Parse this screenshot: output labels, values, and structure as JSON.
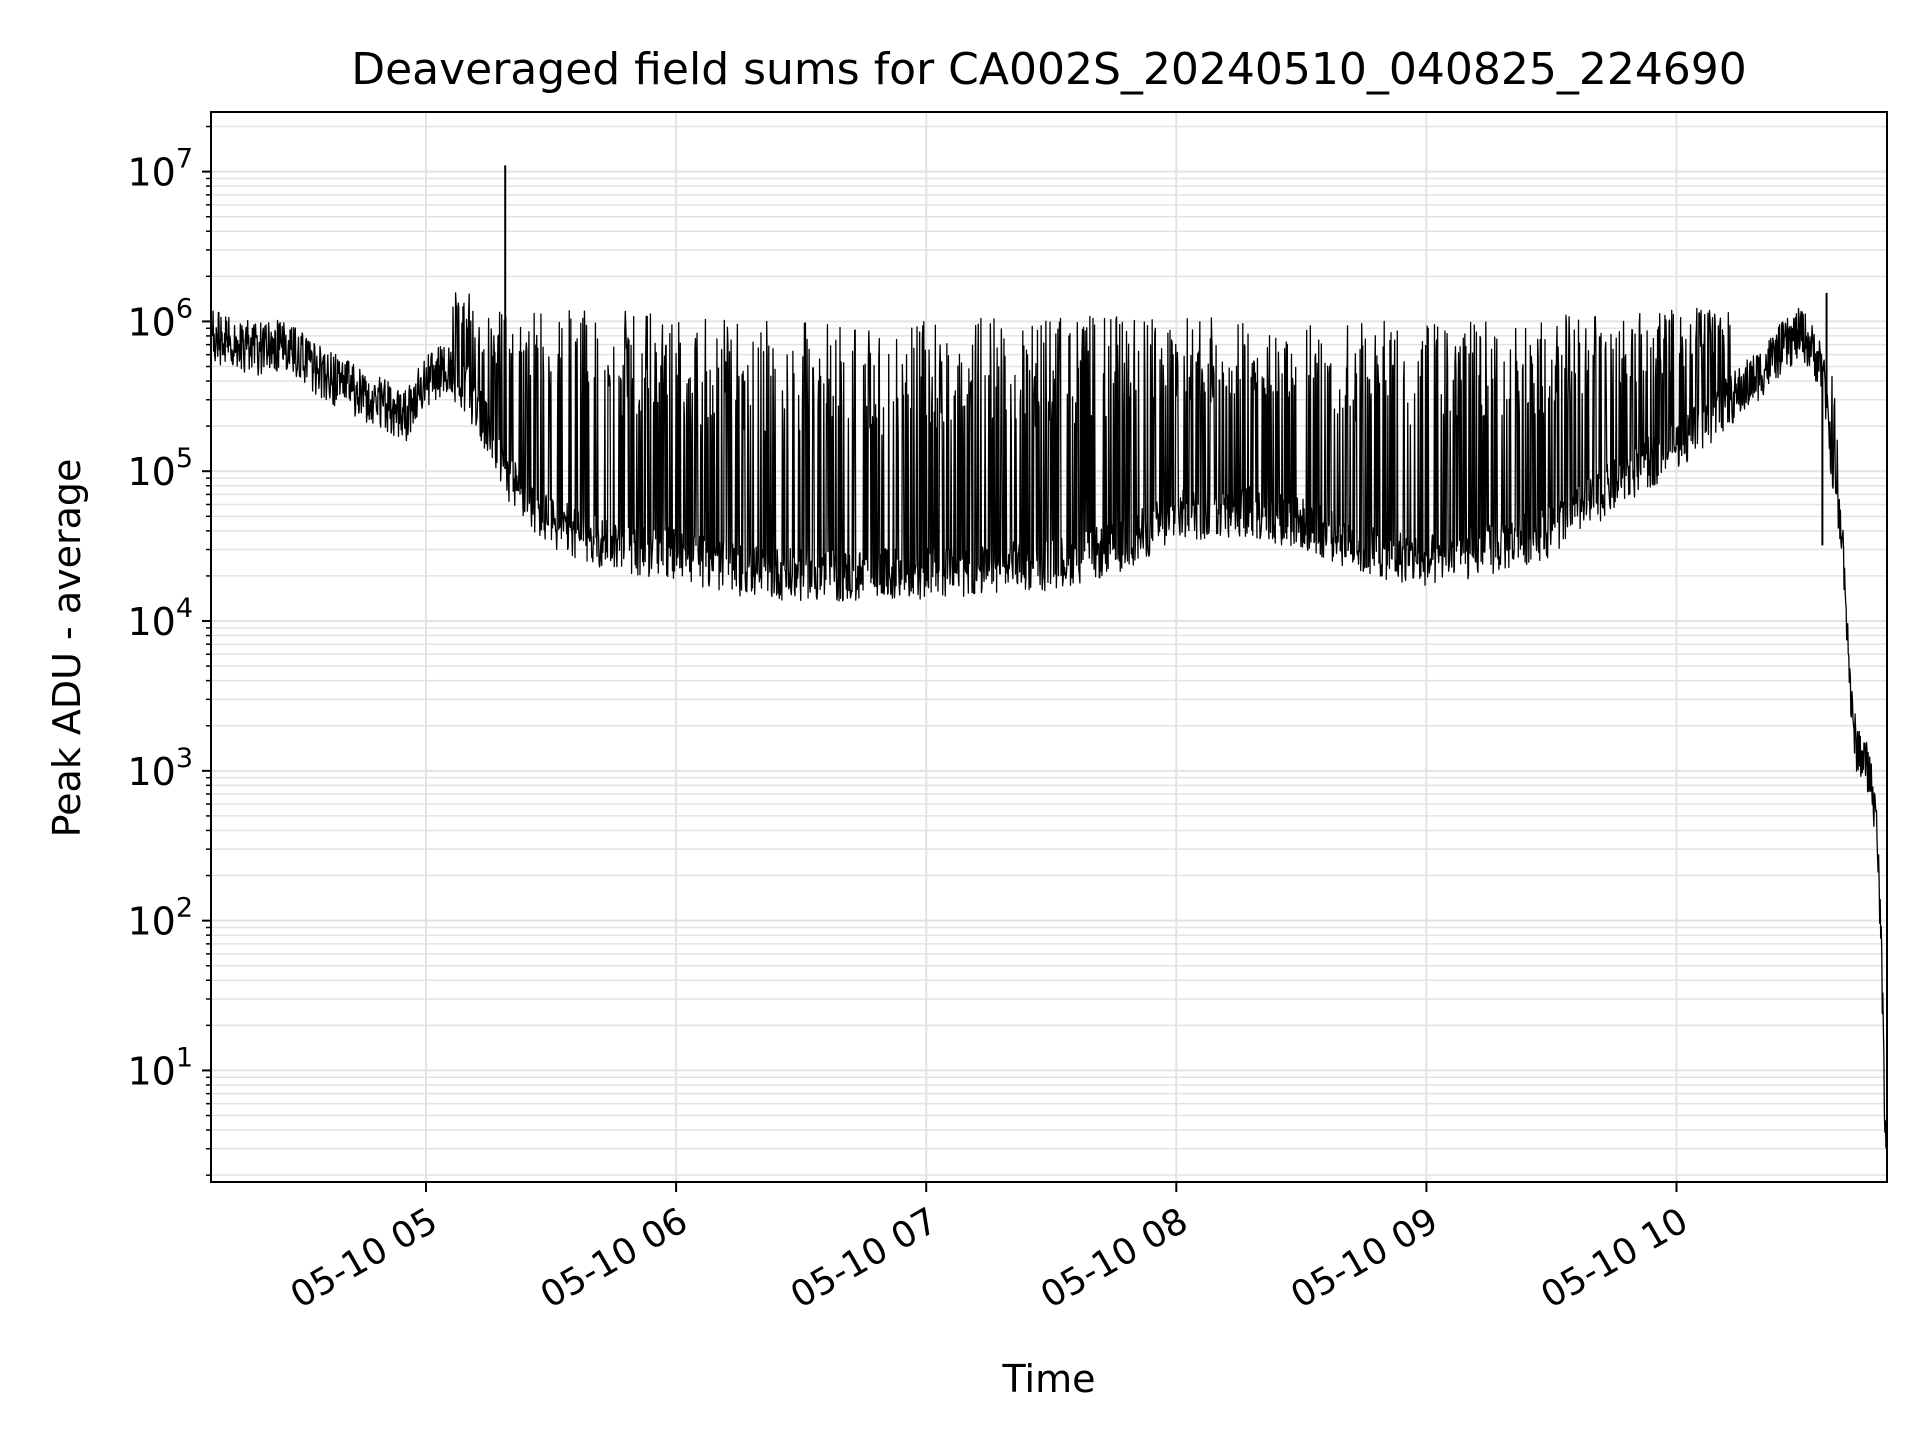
{
  "chart_data": {
    "type": "line",
    "title": "Deaveraged field sums for CA002S_20240510_040825_224690",
    "xlabel": "Time",
    "ylabel": "Peak ADU - average",
    "yscale": "log",
    "ylim": [
      1.8,
      25000000
    ],
    "xlim": [
      "2024-05-10 04:08:25",
      "2024-05-10 10:50:30"
    ],
    "grid": true,
    "line_color": "#000000",
    "x_ticks": [
      "2024-05-10 05:00",
      "2024-05-10 06:00",
      "2024-05-10 07:00",
      "2024-05-10 08:00",
      "2024-05-10 09:00",
      "2024-05-10 10:00"
    ],
    "x_tick_labels": [
      "05-10 05",
      "05-10 06",
      "05-10 07",
      "05-10 08",
      "05-10 09",
      "05-10 10"
    ],
    "y_ticks": [
      10,
      100,
      1000,
      10000,
      100000,
      1000000,
      10000000
    ],
    "y_tick_labels": [
      {
        "base": "10",
        "exp": "1"
      },
      {
        "base": "10",
        "exp": "2"
      },
      {
        "base": "10",
        "exp": "3"
      },
      {
        "base": "10",
        "exp": "4"
      },
      {
        "base": "10",
        "exp": "5"
      },
      {
        "base": "10",
        "exp": "6"
      },
      {
        "base": "10",
        "exp": "7"
      }
    ],
    "series": [
      {
        "x": [
          "2024-05-10 04:08:25",
          "2024-05-10 04:15",
          "2024-05-10 04:20",
          "2024-05-10 04:25",
          "2024-05-10 04:30",
          "2024-05-10 04:35",
          "2024-05-10 04:40",
          "2024-05-10 04:45",
          "2024-05-10 04:50",
          "2024-05-10 04:55",
          "2024-05-10 05:00",
          "2024-05-10 05:05",
          "2024-05-10 05:10",
          "2024-05-10 05:15",
          "2024-05-10 05:20",
          "2024-05-10 05:25",
          "2024-05-10 05:30",
          "2024-05-10 05:40",
          "2024-05-10 05:50",
          "2024-05-10 06:00",
          "2024-05-10 06:15",
          "2024-05-10 06:30",
          "2024-05-10 06:45",
          "2024-05-10 07:00",
          "2024-05-10 07:15",
          "2024-05-10 07:30",
          "2024-05-10 07:45",
          "2024-05-10 08:00",
          "2024-05-10 08:15",
          "2024-05-10 08:30",
          "2024-05-10 08:45",
          "2024-05-10 09:00",
          "2024-05-10 09:15",
          "2024-05-10 09:30",
          "2024-05-10 09:45",
          "2024-05-10 10:00",
          "2024-05-10 10:10",
          "2024-05-10 10:20",
          "2024-05-10 10:25",
          "2024-05-10 10:30",
          "2024-05-10 10:35",
          "2024-05-10 10:38",
          "2024-05-10 10:40",
          "2024-05-10 10:42",
          "2024-05-10 10:43",
          "2024-05-10 10:45",
          "2024-05-10 10:47",
          "2024-05-10 10:48",
          "2024-05-10 10:49",
          "2024-05-10 10:50",
          "2024-05-10 10:50:30"
        ],
        "baseline": [
          800000,
          700000,
          650000,
          700000,
          600000,
          450000,
          380000,
          320000,
          280000,
          230000,
          400000,
          500000,
          350000,
          180000,
          90000,
          60000,
          45000,
          35000,
          30000,
          28000,
          22000,
          20000,
          20000,
          21000,
          22000,
          24000,
          30000,
          50000,
          55000,
          45000,
          30000,
          25000,
          30000,
          40000,
          80000,
          150000,
          250000,
          450000,
          650000,
          850000,
          500000,
          80000,
          30000,
          2500,
          1500,
          1200,
          800,
          400,
          100,
          5,
          4
        ],
        "peaks": [
          1100000,
          1050000,
          1000000,
          1000000,
          900000,
          700000,
          600000,
          500000,
          450000,
          500000,
          1500000,
          1900000,
          1600000,
          1200000,
          1200000,
          1200000,
          1200000,
          1200000,
          1200000,
          1100000,
          1000000,
          1000000,
          1000000,
          1000000,
          1100000,
          1100000,
          1100000,
          1100000,
          1050000,
          1000000,
          1000000,
          1000000,
          1050000,
          1100000,
          1100000,
          1200000,
          1300000,
          1000000,
          900000,
          1000000,
          1500000,
          400000,
          80000,
          3000,
          1700,
          1500,
          1000,
          450,
          120,
          6,
          4
        ],
        "spikes": [
          {
            "x": "2024-05-10 05:19",
            "y": 11000000
          },
          {
            "x": "2024-05-10 10:36",
            "y": 1550000
          },
          {
            "x": "2024-05-10 10:35",
            "y": 32000
          }
        ]
      }
    ]
  }
}
